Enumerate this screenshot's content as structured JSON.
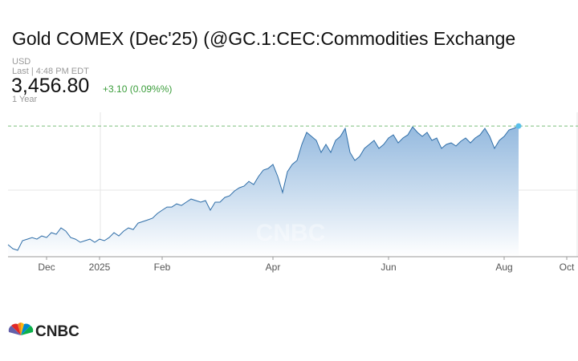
{
  "chart_data": {
    "type": "area",
    "title": "Gold COMEX (Dec'25) (@GC.1:CEC:Commodities Exchange",
    "currency": "USD",
    "last_time": "Last | 4:48 PM EDT",
    "price": {
      "value": 3456.8,
      "label": "3,456.80"
    },
    "change": "+3.10 (0.09%%)",
    "range": "1 Year",
    "watermark": "CNBC",
    "logo": "CNBC",
    "color": "#2f6ea8",
    "fill_color": "#8fb6dd",
    "last_price_line_color": "#7cbf7c",
    "end_dot_color": "#5bc0eb",
    "ylim": [
      2577,
      3549
    ],
    "categories": [
      null,
      null,
      null,
      null,
      null,
      null,
      null,
      null,
      "Dec",
      null,
      null,
      null,
      null,
      null,
      null,
      null,
      null,
      null,
      null,
      "2025",
      null,
      null,
      null,
      null,
      null,
      null,
      null,
      null,
      null,
      null,
      null,
      null,
      "Feb",
      null,
      null,
      null,
      null,
      null,
      null,
      null,
      null,
      null,
      null,
      null,
      null,
      null,
      null,
      null,
      null,
      null,
      null,
      null,
      null,
      null,
      null,
      "Apr",
      null,
      null,
      null,
      null,
      null,
      null,
      null,
      null,
      null,
      null,
      null,
      null,
      null,
      null,
      null,
      null,
      null,
      null,
      null,
      null,
      null,
      null,
      null,
      "Jun",
      null,
      null,
      null,
      null,
      null,
      null,
      null,
      null,
      null,
      null,
      null,
      null,
      null,
      null,
      null,
      null,
      null,
      null,
      null,
      null,
      null,
      null,
      null,
      "Aug",
      null,
      null,
      null,
      null,
      null,
      null,
      null,
      null,
      null,
      null,
      null,
      null,
      "Oct",
      null
    ],
    "values": [
      2658,
      2631,
      2620,
      2685,
      2695,
      2706,
      2695,
      2717,
      2706,
      2739,
      2728,
      2771,
      2749,
      2706,
      2695,
      2674,
      2685,
      2695,
      2674,
      2695,
      2685,
      2706,
      2739,
      2717,
      2749,
      2771,
      2760,
      2803,
      2814,
      2825,
      2836,
      2868,
      2890,
      2911,
      2911,
      2933,
      2922,
      2944,
      2965,
      2955,
      2944,
      2955,
      2890,
      2944,
      2944,
      2976,
      2987,
      3019,
      3041,
      3052,
      3084,
      3063,
      3117,
      3160,
      3171,
      3198,
      3117,
      3009,
      3149,
      3198,
      3225,
      3333,
      3414,
      3387,
      3360,
      3279,
      3333,
      3279,
      3360,
      3387,
      3441,
      3279,
      3225,
      3252,
      3306,
      3333,
      3360,
      3306,
      3333,
      3376,
      3397,
      3343,
      3376,
      3397,
      3451,
      3414,
      3387,
      3414,
      3360,
      3376,
      3306,
      3333,
      3343,
      3322,
      3354,
      3376,
      3343,
      3376,
      3397,
      3441,
      3387,
      3306,
      3360,
      3387,
      3430,
      3441,
      3456.8,
      null,
      null,
      null,
      null,
      null,
      null,
      null,
      null,
      null,
      null,
      null
    ]
  }
}
